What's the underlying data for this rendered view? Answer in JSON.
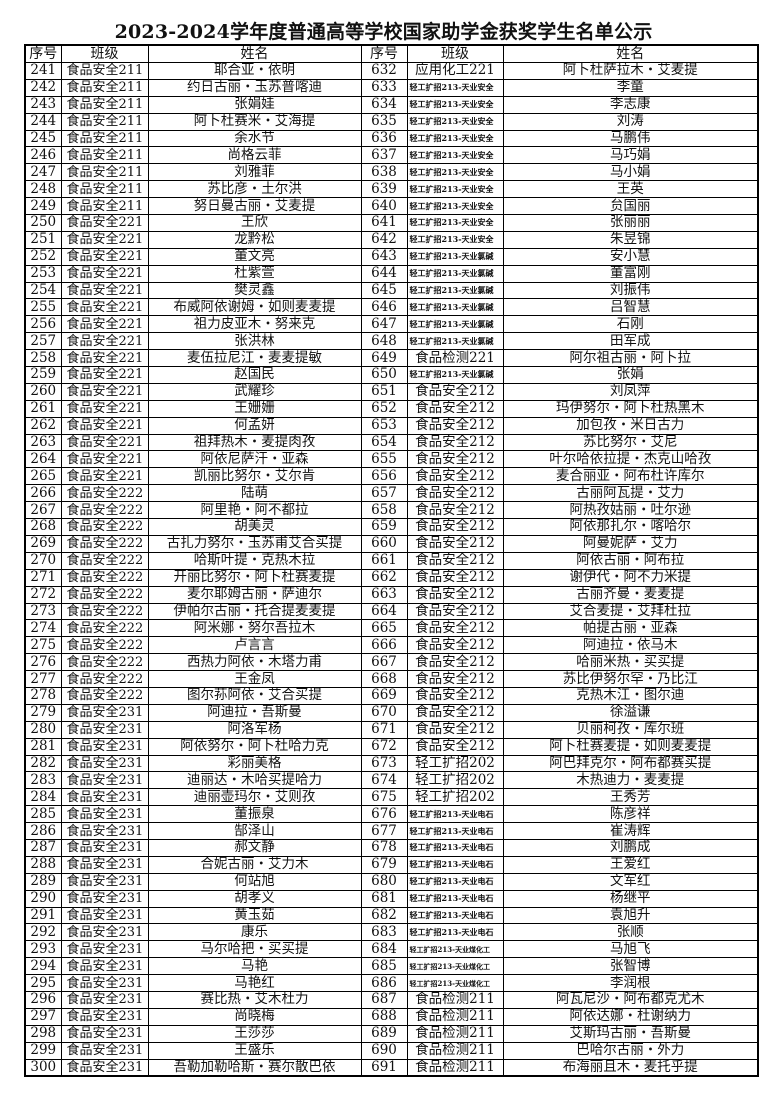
{
  "title": "2023-2024学年度普通高等学校国家助学金获奖学生名单公示",
  "headers": [
    "序号",
    "班级",
    "姓名",
    "序号",
    "班级",
    "姓名"
  ],
  "rows": [
    [
      "241",
      "食品安全211",
      "耶合亚・依明",
      "632",
      "应用化工221",
      "阿卜杜萨拉木・艾麦提"
    ],
    [
      "242",
      "食品安全211",
      "约日古丽・玉苏普喀迪",
      "633",
      "轻工扩招213-天业安全",
      "李童"
    ],
    [
      "243",
      "食品安全211",
      "张娟娃",
      "634",
      "轻工扩招213-天业安全",
      "李志康"
    ],
    [
      "244",
      "食品安全211",
      "阿卜杜赛米・艾海提",
      "635",
      "轻工扩招213-天业安全",
      "刘涛"
    ],
    [
      "245",
      "食品安全211",
      "余水节",
      "636",
      "轻工扩招213-天业安全",
      "马鹏伟"
    ],
    [
      "246",
      "食品安全211",
      "尚格云菲",
      "637",
      "轻工扩招213-天业安全",
      "马巧娟"
    ],
    [
      "247",
      "食品安全211",
      "刘雅菲",
      "638",
      "轻工扩招213-天业安全",
      "马小娟"
    ],
    [
      "248",
      "食品安全211",
      "苏比彦・土尔洪",
      "639",
      "轻工扩招213-天业安全",
      "王英"
    ],
    [
      "249",
      "食品安全211",
      "努日曼古丽・艾麦提",
      "640",
      "轻工扩招213-天业安全",
      "贠国丽"
    ],
    [
      "250",
      "食品安全221",
      "王欣",
      "641",
      "轻工扩招213-天业安全",
      "张丽丽"
    ],
    [
      "251",
      "食品安全221",
      "龙黔松",
      "642",
      "轻工扩招213-天业安全",
      "朱昱锦"
    ],
    [
      "252",
      "食品安全221",
      "董文亮",
      "643",
      "轻工扩招213-天业氯碱",
      "安小慧"
    ],
    [
      "253",
      "食品安全221",
      "杜紫萱",
      "644",
      "轻工扩招213-天业氯碱",
      "董富刚"
    ],
    [
      "254",
      "食品安全221",
      "樊灵鑫",
      "645",
      "轻工扩招213-天业氯碱",
      "刘振伟"
    ],
    [
      "255",
      "食品安全221",
      "布威阿依谢姆・如则麦麦提",
      "646",
      "轻工扩招213-天业氯碱",
      "吕智慧"
    ],
    [
      "256",
      "食品安全221",
      "祖力皮亚木・努来克",
      "647",
      "轻工扩招213-天业氯碱",
      "石刚"
    ],
    [
      "257",
      "食品安全221",
      "张洪林",
      "648",
      "轻工扩招213-天业氯碱",
      "田军成"
    ],
    [
      "258",
      "食品安全221",
      "麦伍拉尼江・麦麦提敏",
      "649",
      "食品检测221",
      "阿尔祖古丽・阿卜拉"
    ],
    [
      "259",
      "食品安全221",
      "赵国民",
      "650",
      "轻工扩招213-天业氯碱",
      "张娟"
    ],
    [
      "260",
      "食品安全221",
      "武耀珍",
      "651",
      "食品安全212",
      "刘凤萍"
    ],
    [
      "261",
      "食品安全221",
      "王姗姗",
      "652",
      "食品安全212",
      "玛伊努尔・阿卜杜热黑木"
    ],
    [
      "262",
      "食品安全221",
      "何孟妍",
      "653",
      "食品安全212",
      "加包孜・米日古力"
    ],
    [
      "263",
      "食品安全221",
      "祖拜热木・麦提肉孜",
      "654",
      "食品安全212",
      "苏比努尔・艾尼"
    ],
    [
      "264",
      "食品安全221",
      "阿依尼萨汗・亚森",
      "655",
      "食品安全212",
      "叶尔哈依拉提・杰克山哈孜"
    ],
    [
      "265",
      "食品安全221",
      "凯丽比努尔・艾尔肯",
      "656",
      "食品安全212",
      "麦合丽亚・阿布杜许库尔"
    ],
    [
      "266",
      "食品安全222",
      "陆萌",
      "657",
      "食品安全212",
      "古丽阿瓦提・艾力"
    ],
    [
      "267",
      "食品安全222",
      "阿里艳・阿不都拉",
      "658",
      "食品安全212",
      "阿热孜姑丽・吐尔逊"
    ],
    [
      "268",
      "食品安全222",
      "胡美灵",
      "659",
      "食品安全212",
      "阿依那扎尔・喀哈尔"
    ],
    [
      "269",
      "食品安全222",
      "古扎力努尔・玉苏甫艾合买提",
      "660",
      "食品安全212",
      "阿曼妮萨・艾力"
    ],
    [
      "270",
      "食品安全222",
      "哈斯叶提・克热木拉",
      "661",
      "食品安全212",
      "阿依古丽・阿布拉"
    ],
    [
      "271",
      "食品安全222",
      "开丽比努尔・阿卜杜赛麦提",
      "662",
      "食品安全212",
      "谢伊代・阿不力米提"
    ],
    [
      "272",
      "食品安全222",
      "麦尔耶姆古丽・萨迪尔",
      "663",
      "食品安全212",
      "古丽齐曼・麦麦提"
    ],
    [
      "273",
      "食品安全222",
      "伊帕尔古丽・托合提麦麦提",
      "664",
      "食品安全212",
      "艾合麦提・艾拜杜拉"
    ],
    [
      "274",
      "食品安全222",
      "阿米娜・努尔吾拉木",
      "665",
      "食品安全212",
      "帕提古丽・亚森"
    ],
    [
      "275",
      "食品安全222",
      "卢言言",
      "666",
      "食品安全212",
      "阿迪拉・依马木"
    ],
    [
      "276",
      "食品安全222",
      "西热力阿依・木塔力甫",
      "667",
      "食品安全212",
      "哈丽米热・买买提"
    ],
    [
      "277",
      "食品安全222",
      "王金凤",
      "668",
      "食品安全212",
      "苏比伊努尔罕・乃比江"
    ],
    [
      "278",
      "食品安全222",
      "图尔荪阿依・艾合买提",
      "669",
      "食品安全212",
      "克热木江・图尔迪"
    ],
    [
      "279",
      "食品安全231",
      "阿迪拉・吾斯曼",
      "670",
      "食品安全212",
      "徐溢谦"
    ],
    [
      "280",
      "食品安全231",
      "阿洛军杨",
      "671",
      "食品安全212",
      "贝丽柯孜・库尔班"
    ],
    [
      "281",
      "食品安全231",
      "阿依努尔・阿卜杜哈力克",
      "672",
      "食品安全212",
      "阿卜杜赛麦提・如则麦麦提"
    ],
    [
      "282",
      "食品安全231",
      "彩丽美格",
      "673",
      "轻工扩招202",
      "阿巴拜克尔・阿布都赛买提"
    ],
    [
      "283",
      "食品安全231",
      "迪丽达・木哈买提哈力",
      "674",
      "轻工扩招202",
      "木热迪力・麦麦提"
    ],
    [
      "284",
      "食品安全231",
      "迪丽壶玛尔・艾则孜",
      "675",
      "轻工扩招202",
      "王秀芳"
    ],
    [
      "285",
      "食品安全231",
      "董振泉",
      "676",
      "轻工扩招213-天业电石",
      "陈彦祥"
    ],
    [
      "286",
      "食品安全231",
      "郜泽山",
      "677",
      "轻工扩招213-天业电石",
      "崔涛辉"
    ],
    [
      "287",
      "食品安全231",
      "郝文静",
      "678",
      "轻工扩招213-天业电石",
      "刘鹏成"
    ],
    [
      "288",
      "食品安全231",
      "合妮古丽・艾力木",
      "679",
      "轻工扩招213-天业电石",
      "王爱红"
    ],
    [
      "289",
      "食品安全231",
      "何站旭",
      "680",
      "轻工扩招213-天业电石",
      "文军红"
    ],
    [
      "290",
      "食品安全231",
      "胡孝义",
      "681",
      "轻工扩招213-天业电石",
      "杨继平"
    ],
    [
      "291",
      "食品安全231",
      "黄玉茹",
      "682",
      "轻工扩招213-天业电石",
      "袁旭升"
    ],
    [
      "292",
      "食品安全231",
      "康乐",
      "683",
      "轻工扩招213-天业电石",
      "张顺"
    ],
    [
      "293",
      "食品安全231",
      "马尔哈把・买买提",
      "684",
      "轻工扩招213-天业煤化工",
      "马旭飞"
    ],
    [
      "294",
      "食品安全231",
      "马艳",
      "685",
      "轻工扩招213-天业煤化工",
      "张智博"
    ],
    [
      "295",
      "食品安全231",
      "马艳红",
      "686",
      "轻工扩招213-天业煤化工",
      "李润根"
    ],
    [
      "296",
      "食品安全231",
      "赛比热・艾木杜力",
      "687",
      "食品检测211",
      "阿瓦尼沙・阿布都克尤木"
    ],
    [
      "297",
      "食品安全231",
      "尚晓梅",
      "688",
      "食品检测211",
      "阿依达娜・杜谢纳力"
    ],
    [
      "298",
      "食品安全231",
      "王莎莎",
      "689",
      "食品检测211",
      "艾斯玛古丽・吾斯曼"
    ],
    [
      "299",
      "食品安全231",
      "王盛乐",
      "690",
      "食品检测211",
      "巴哈尔古丽・外力"
    ],
    [
      "300",
      "食品安全231",
      "吾勒加勒哈斯・赛尔散巴依",
      "691",
      "食品检测211",
      "布海丽且木・麦托乎提"
    ]
  ]
}
